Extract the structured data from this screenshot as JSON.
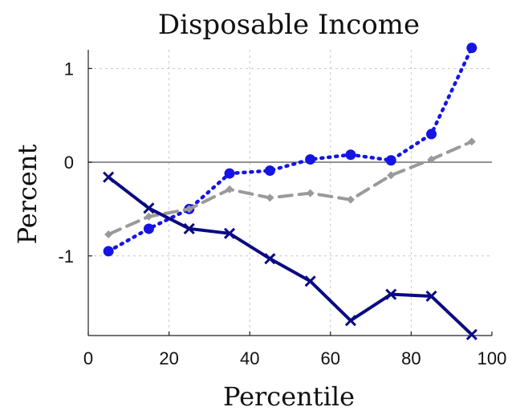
{
  "chart_data": {
    "type": "line",
    "title": "Disposable Income",
    "xlabel": "Percentile",
    "ylabel": "Percent",
    "xlim": [
      0,
      100
    ],
    "ylim": [
      -1.85,
      1.2
    ],
    "xticks": [
      0,
      20,
      40,
      60,
      80,
      100
    ],
    "yticks": [
      1,
      0,
      -1
    ],
    "grid": true,
    "zero_line": true,
    "x": [
      5,
      15,
      25,
      35,
      45,
      55,
      65,
      75,
      85,
      95
    ],
    "series": [
      {
        "values": [
          -0.95,
          -0.71,
          -0.5,
          -0.12,
          -0.09,
          0.03,
          0.08,
          0.02,
          0.3,
          1.22
        ],
        "color": "#1414e6",
        "style": "dotted",
        "marker": "circle"
      },
      {
        "values": [
          -0.77,
          -0.58,
          -0.5,
          -0.29,
          -0.38,
          -0.33,
          -0.4,
          -0.14,
          0.03,
          0.22
        ],
        "color": "#9a9a9a",
        "style": "dashed",
        "marker": "diamond"
      },
      {
        "values": [
          -0.16,
          -0.49,
          -0.71,
          -0.76,
          -1.03,
          -1.27,
          -1.69,
          -1.41,
          -1.43,
          -1.84
        ],
        "color": "#0a0a82",
        "style": "solid",
        "marker": "x"
      }
    ]
  }
}
